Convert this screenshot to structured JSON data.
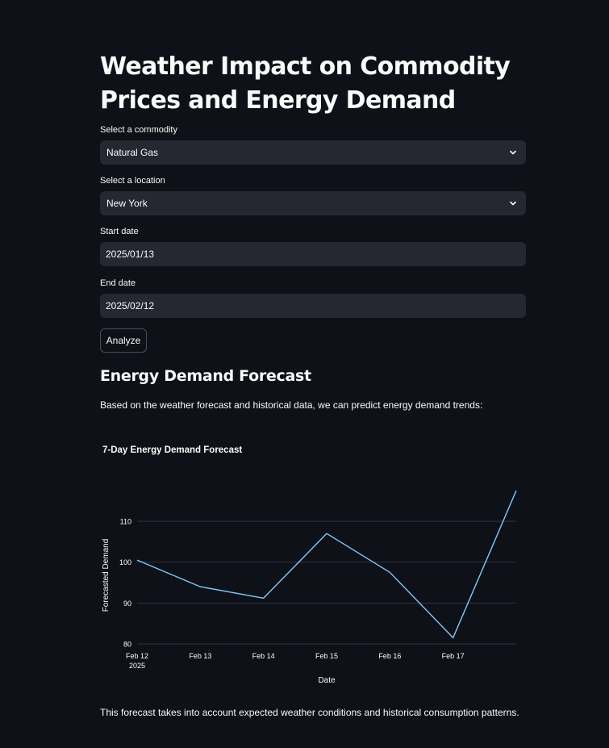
{
  "page": {
    "title": "Weather Impact on Commodity Prices and Energy Demand"
  },
  "form": {
    "commodity_label": "Select a commodity",
    "commodity_value": "Natural Gas",
    "location_label": "Select a location",
    "location_value": "New York",
    "start_label": "Start date",
    "start_value": "2025/01/13",
    "end_label": "End date",
    "end_value": "2025/02/12",
    "analyze_label": "Analyze"
  },
  "forecast": {
    "heading": "Energy Demand Forecast",
    "intro": "Based on the weather forecast and historical data, we can predict energy demand trends:",
    "footer": "This forecast takes into account expected weather conditions and historical consumption patterns."
  },
  "colors": {
    "background": "#0e1117",
    "input_bg": "#262730",
    "line": "#83c9ff",
    "grid": "#31333f"
  },
  "icons": {
    "dropdown": "chevron-down-icon"
  },
  "chart_data": {
    "type": "line",
    "title": "7-Day Energy Demand Forecast",
    "xlabel": "Date",
    "ylabel": "Forecasted Demand",
    "x": [
      "2025-02-12",
      "2025-02-13",
      "2025-02-14",
      "2025-02-15",
      "2025-02-16",
      "2025-02-17",
      "2025-02-18"
    ],
    "x_tick_labels": [
      {
        "date": "2025-02-12",
        "label": "Feb 12",
        "sublabel": "2025"
      },
      {
        "date": "2025-02-13",
        "label": "Feb 13"
      },
      {
        "date": "2025-02-14",
        "label": "Feb 14"
      },
      {
        "date": "2025-02-15",
        "label": "Feb 15"
      },
      {
        "date": "2025-02-16",
        "label": "Feb 16"
      },
      {
        "date": "2025-02-17",
        "label": "Feb 17"
      }
    ],
    "series": [
      {
        "values": [
          100.5,
          94.0,
          91.2,
          107.0,
          97.5,
          81.5,
          117.5
        ]
      }
    ],
    "yticks": [
      80,
      90,
      100,
      110
    ],
    "ylim": [
      80,
      117.5
    ],
    "grid": true
  }
}
